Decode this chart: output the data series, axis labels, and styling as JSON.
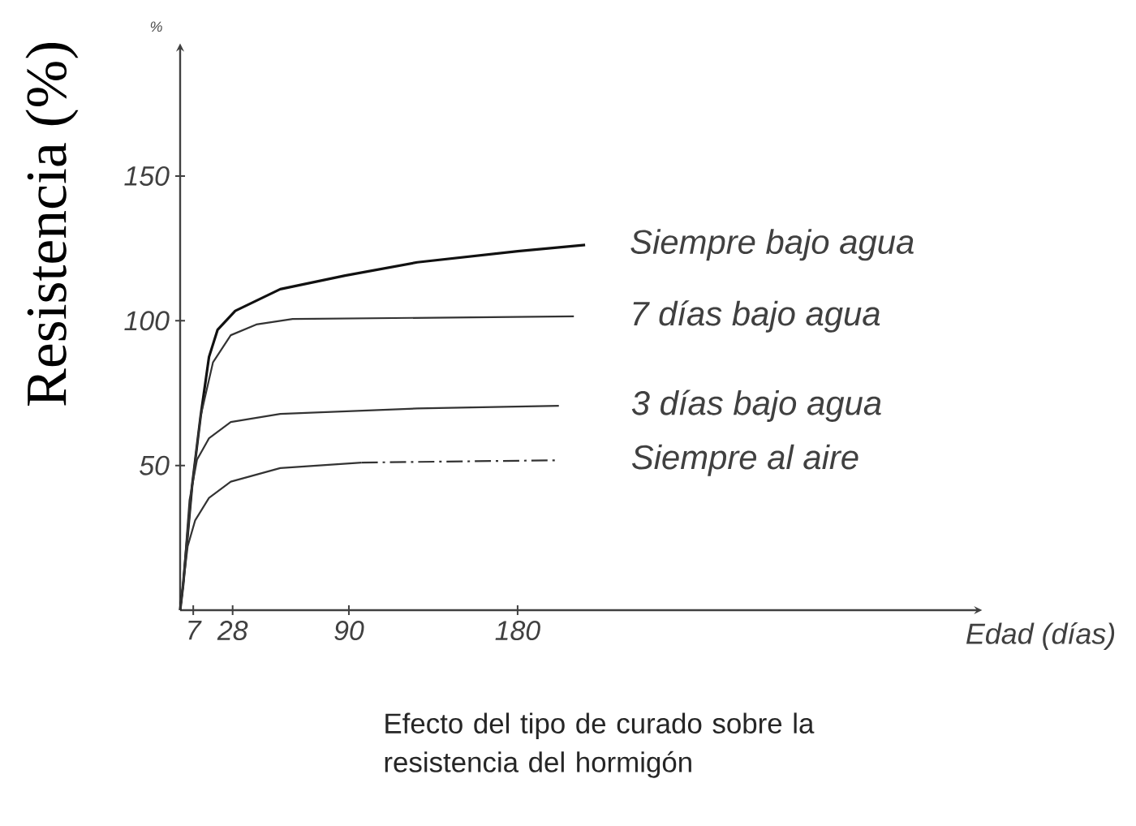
{
  "chart_data": {
    "type": "line",
    "ylabel": "Resistencia (%)",
    "xlabel": "Edad (días)",
    "xlim": [
      0,
      425
    ],
    "ylim": [
      0,
      194
    ],
    "xticks": [
      7,
      28,
      90,
      180
    ],
    "yticks": [
      50,
      100,
      150
    ],
    "legend": false,
    "annotations": [
      "%",
      "Efecto del tipo de curado sobre la resistencia del hormigón"
    ],
    "series": [
      {
        "name": "Siempre bajo agua",
        "color": "#111111",
        "x": [
          0,
          1.6,
          6.3,
          10.9,
          15.4,
          20,
          29.4,
          53.4,
          88,
          126.5,
          180,
          216
        ],
        "values": [
          0,
          8.8,
          42.5,
          66.9,
          87.5,
          96.9,
          103.4,
          110.9,
          115.6,
          120.2,
          124,
          126.2
        ]
      },
      {
        "name": "7 días bajo agua",
        "color": "#333333",
        "x": [
          0,
          1.6,
          6.3,
          10.9,
          17.5,
          27,
          40.6,
          60,
          210
        ],
        "values": [
          0,
          8.8,
          42.5,
          66.9,
          85.6,
          95,
          98.7,
          100.6,
          101.5
        ]
      },
      {
        "name": "3 días bajo agua",
        "color": "#333333",
        "x": [
          0,
          1.6,
          5,
          9,
          15.4,
          27,
          53.4,
          126.5,
          202
        ],
        "values": [
          0,
          8.8,
          38,
          52,
          59.4,
          65,
          67.8,
          69.7,
          70.6
        ]
      },
      {
        "color": "#333333",
        "x": [
          0,
          1.6,
          4,
          8,
          15.4,
          27,
          53.4,
          96.8
        ],
        "values": [
          0,
          8.8,
          22,
          31,
          38.8,
          44.4,
          49.1,
          51
        ]
      },
      {
        "name": "Siempre al aire",
        "color": "#333333",
        "line_style": "dashed",
        "x": [
          96.8,
          202
        ],
        "values": [
          51,
          51.8
        ]
      }
    ]
  }
}
